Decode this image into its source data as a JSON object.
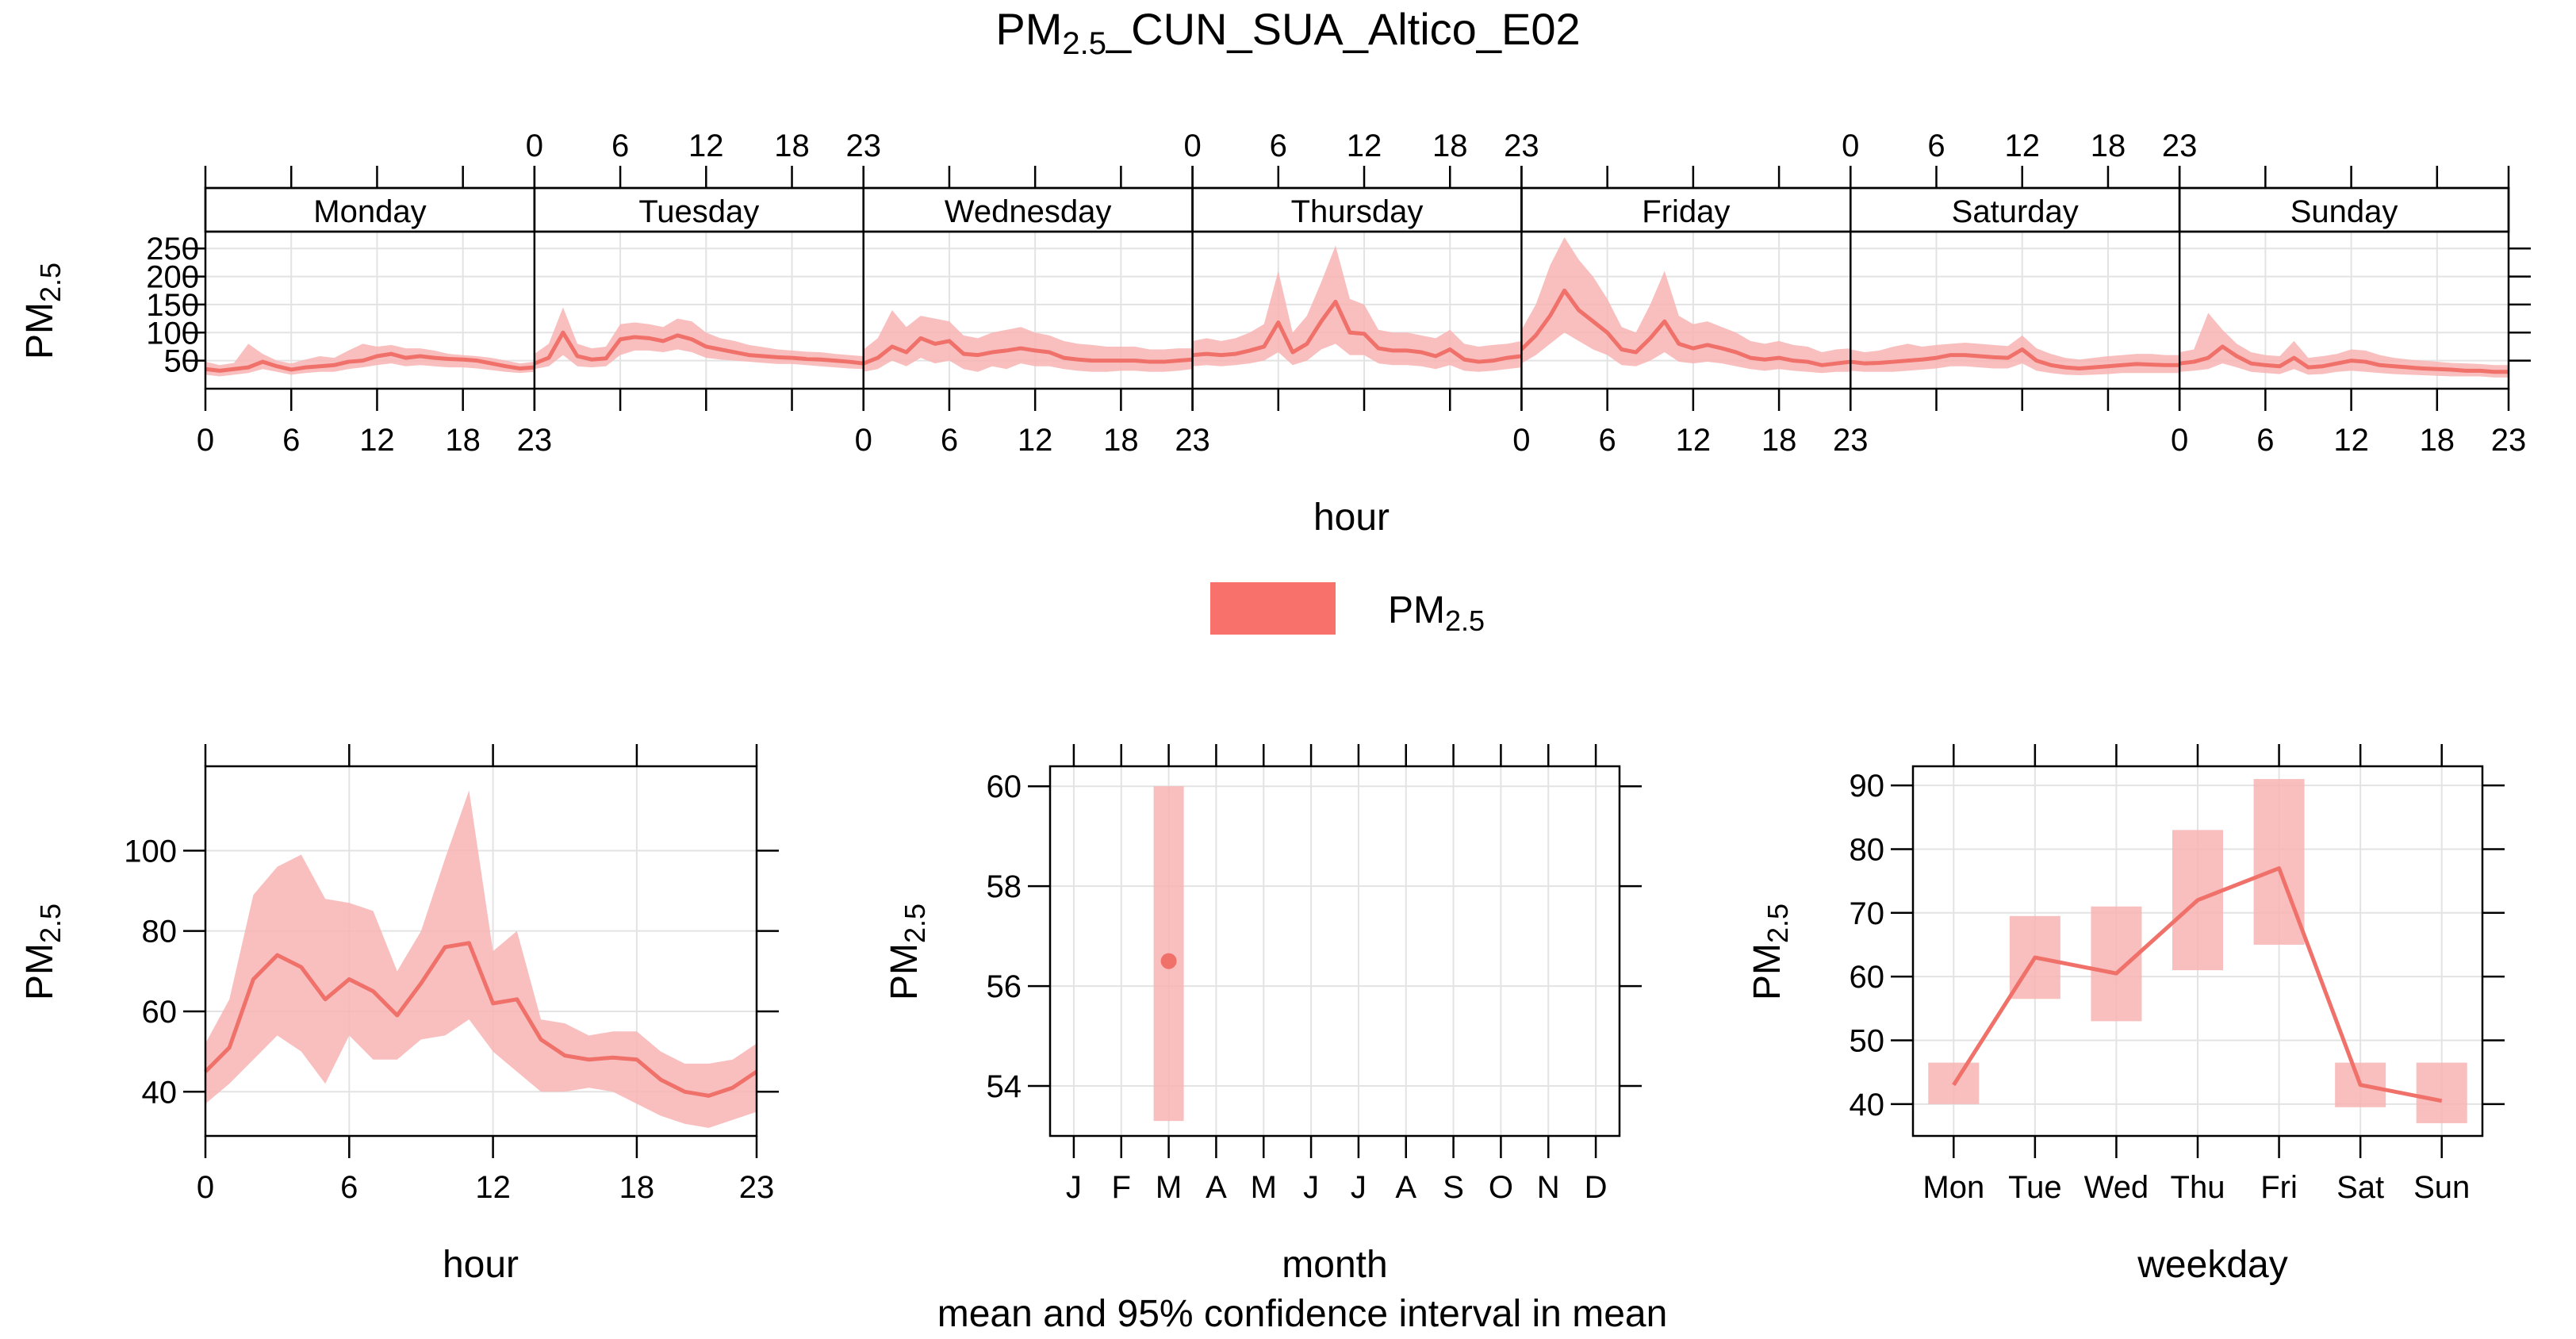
{
  "title": {
    "main": "PM",
    "sub": "2.5",
    "suffix": "_CUN_SUA_Altico_E02"
  },
  "pollutant": {
    "main": "PM",
    "sub": "2.5"
  },
  "footer": "mean and 95% confidence interval in mean",
  "legend": {
    "color": "#f8716b",
    "label_main": "PM",
    "label_sub": "2.5"
  },
  "colors": {
    "line": "#f0706a",
    "band": "#f8b4b4"
  },
  "chart_data": [
    {
      "id": "hour_weekday",
      "type": "line",
      "xlabel": "hour",
      "ylabel": "PM2.5",
      "categories": [
        "Monday",
        "Tuesday",
        "Wednesday",
        "Thursday",
        "Friday",
        "Saturday",
        "Sunday"
      ],
      "x_ticks": [
        0,
        6,
        12,
        18,
        23
      ],
      "y_ticks": [
        50,
        100,
        150,
        200,
        250
      ],
      "ylim": [
        0,
        280
      ],
      "series": [
        {
          "mean": [
            35,
            32,
            35,
            38,
            48,
            40,
            34,
            38,
            40,
            42,
            48,
            50,
            58,
            62,
            55,
            58,
            55,
            53,
            52,
            50,
            45,
            40,
            36,
            38
          ],
          "lower": [
            25,
            22,
            25,
            28,
            35,
            30,
            25,
            28,
            30,
            30,
            35,
            38,
            42,
            45,
            40,
            42,
            40,
            38,
            38,
            36,
            33,
            30,
            28,
            30
          ],
          "upper": [
            48,
            42,
            46,
            80,
            62,
            50,
            45,
            52,
            58,
            55,
            68,
            80,
            75,
            78,
            72,
            72,
            68,
            62,
            60,
            58,
            55,
            50,
            45,
            48
          ]
        },
        {
          "mean": [
            45,
            55,
            100,
            58,
            52,
            54,
            88,
            92,
            90,
            85,
            95,
            88,
            75,
            70,
            65,
            60,
            58,
            56,
            55,
            53,
            52,
            50,
            48,
            45
          ],
          "lower": [
            35,
            40,
            60,
            40,
            38,
            40,
            60,
            68,
            68,
            65,
            70,
            65,
            55,
            52,
            50,
            48,
            46,
            44,
            44,
            42,
            40,
            38,
            36,
            35
          ],
          "upper": [
            62,
            80,
            145,
            80,
            72,
            75,
            115,
            118,
            115,
            110,
            125,
            120,
            100,
            90,
            85,
            78,
            74,
            70,
            68,
            66,
            65,
            62,
            60,
            58
          ]
        },
        {
          "mean": [
            45,
            55,
            75,
            65,
            90,
            80,
            85,
            62,
            60,
            65,
            68,
            72,
            68,
            65,
            55,
            52,
            50,
            50,
            50,
            50,
            48,
            48,
            50,
            52
          ],
          "lower": [
            30,
            35,
            50,
            40,
            55,
            45,
            50,
            35,
            30,
            40,
            35,
            45,
            40,
            40,
            35,
            32,
            30,
            30,
            32,
            32,
            30,
            30,
            32,
            35
          ],
          "upper": [
            70,
            90,
            140,
            110,
            130,
            125,
            120,
            95,
            90,
            100,
            105,
            110,
            100,
            95,
            85,
            80,
            78,
            75,
            75,
            75,
            70,
            70,
            72,
            72
          ]
        },
        {
          "mean": [
            60,
            62,
            60,
            62,
            68,
            75,
            118,
            65,
            80,
            120,
            155,
            100,
            98,
            72,
            68,
            68,
            65,
            58,
            70,
            52,
            48,
            50,
            55,
            58
          ],
          "lower": [
            40,
            42,
            40,
            42,
            45,
            50,
            65,
            42,
            50,
            70,
            80,
            60,
            60,
            45,
            42,
            42,
            40,
            35,
            42,
            32,
            30,
            32,
            35,
            38
          ],
          "upper": [
            85,
            90,
            85,
            90,
            100,
            115,
            210,
            100,
            130,
            190,
            255,
            160,
            150,
            105,
            100,
            100,
            95,
            90,
            105,
            80,
            75,
            78,
            80,
            85
          ]
        },
        {
          "mean": [
            70,
            95,
            130,
            175,
            140,
            120,
            100,
            70,
            65,
            90,
            120,
            80,
            72,
            78,
            72,
            65,
            55,
            52,
            55,
            50,
            48,
            42,
            45,
            48
          ],
          "lower": [
            45,
            60,
            80,
            100,
            85,
            70,
            60,
            42,
            40,
            50,
            65,
            48,
            45,
            48,
            45,
            40,
            35,
            32,
            35,
            32,
            30,
            28,
            30,
            30
          ],
          "upper": [
            105,
            150,
            220,
            270,
            230,
            200,
            160,
            110,
            100,
            150,
            210,
            130,
            115,
            120,
            110,
            100,
            85,
            80,
            85,
            78,
            75,
            65,
            70,
            72
          ]
        },
        {
          "mean": [
            48,
            45,
            46,
            48,
            50,
            52,
            55,
            60,
            60,
            58,
            56,
            55,
            70,
            50,
            42,
            38,
            36,
            38,
            40,
            42,
            44,
            43,
            42,
            42
          ],
          "lower": [
            32,
            30,
            30,
            30,
            32,
            34,
            36,
            40,
            40,
            38,
            36,
            36,
            45,
            32,
            28,
            25,
            24,
            25,
            26,
            28,
            28,
            28,
            28,
            28
          ],
          "upper": [
            70,
            65,
            68,
            75,
            80,
            75,
            78,
            80,
            82,
            80,
            78,
            76,
            95,
            72,
            62,
            55,
            52,
            55,
            58,
            60,
            62,
            62,
            60,
            60
          ]
        },
        {
          "mean": [
            45,
            48,
            55,
            75,
            58,
            45,
            42,
            40,
            55,
            38,
            40,
            45,
            50,
            48,
            42,
            40,
            38,
            36,
            35,
            34,
            32,
            32,
            30,
            30
          ],
          "lower": [
            30,
            32,
            35,
            45,
            38,
            30,
            28,
            26,
            35,
            25,
            26,
            30,
            32,
            30,
            28,
            26,
            25,
            24,
            23,
            22,
            22,
            22,
            20,
            20
          ],
          "upper": [
            65,
            70,
            135,
            105,
            80,
            65,
            60,
            58,
            85,
            55,
            58,
            62,
            70,
            68,
            60,
            55,
            52,
            50,
            48,
            46,
            45,
            44,
            42,
            42
          ]
        }
      ]
    },
    {
      "id": "hour",
      "type": "line",
      "xlabel": "hour",
      "ylabel": "PM2.5",
      "x": [
        0,
        1,
        2,
        3,
        4,
        5,
        6,
        7,
        8,
        9,
        10,
        11,
        12,
        13,
        14,
        15,
        16,
        17,
        18,
        19,
        20,
        21,
        22,
        23
      ],
      "x_ticks": [
        0,
        6,
        12,
        18,
        23
      ],
      "y_ticks": [
        40,
        60,
        80,
        100
      ],
      "ylim": [
        29,
        121
      ],
      "mean": [
        45,
        51,
        68,
        74,
        71,
        63,
        68,
        65,
        59,
        67,
        76,
        77,
        62,
        63,
        53,
        49,
        48,
        48.5,
        48,
        43,
        40,
        39,
        41,
        45
      ],
      "lower": [
        37,
        42,
        48,
        54,
        50,
        42,
        54,
        48,
        48,
        53,
        54,
        58,
        50,
        45,
        40,
        40,
        41,
        40,
        37,
        34,
        32,
        31,
        33,
        35
      ],
      "upper": [
        52,
        63,
        89,
        96,
        99,
        88,
        87,
        85,
        70,
        80,
        98,
        115,
        75,
        80,
        58,
        57,
        54,
        55,
        55,
        50,
        47,
        47,
        48,
        52
      ]
    },
    {
      "id": "month",
      "type": "scatter",
      "xlabel": "month",
      "ylabel": "PM2.5",
      "categories": [
        "J",
        "F",
        "M",
        "A",
        "M",
        "J",
        "J",
        "A",
        "S",
        "O",
        "N",
        "D"
      ],
      "y_ticks": [
        54,
        56,
        58,
        60
      ],
      "ylim": [
        53.0,
        60.4
      ],
      "points": [
        {
          "category_index": 2,
          "mean": 56.5,
          "lower": 53.3,
          "upper": 60.0
        }
      ]
    },
    {
      "id": "weekday",
      "type": "line",
      "xlabel": "weekday",
      "ylabel": "PM2.5",
      "categories": [
        "Mon",
        "Tue",
        "Wed",
        "Thu",
        "Fri",
        "Sat",
        "Sun"
      ],
      "y_ticks": [
        40,
        50,
        60,
        70,
        80,
        90
      ],
      "ylim": [
        35,
        93
      ],
      "mean": [
        43,
        63,
        60.5,
        72,
        77,
        43,
        40.5
      ],
      "lower": [
        40,
        56.5,
        53,
        61,
        65,
        39.5,
        37
      ],
      "upper": [
        46.5,
        69.5,
        71,
        83,
        91,
        46.5,
        46.5
      ]
    }
  ]
}
